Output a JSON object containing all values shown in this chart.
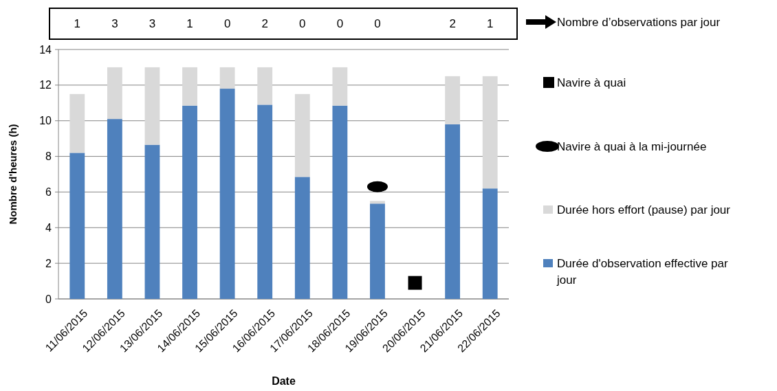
{
  "chart_data": {
    "type": "bar",
    "stacked": true,
    "xlabel": "Date",
    "ylabel": "Nombre d'heures (h)",
    "categories": [
      "11/06/2015",
      "12/06/2015",
      "13/06/2015",
      "14/06/2015",
      "15/06/2015",
      "16/06/2015",
      "17/06/2015",
      "18/06/2015",
      "19/06/2015",
      "20/06/2015",
      "21/06/2015",
      "22/06/2015"
    ],
    "series": [
      {
        "name": "Navire à quai",
        "type": "scatter",
        "marker": "square",
        "color": "#000000",
        "values": [
          null,
          null,
          null,
          null,
          null,
          null,
          null,
          null,
          null,
          0.9,
          null,
          null
        ]
      },
      {
        "name": "Navire à quai à la mi-journée",
        "type": "scatter",
        "marker": "circle",
        "color": "#000000",
        "values": [
          null,
          null,
          null,
          null,
          null,
          null,
          null,
          null,
          6.3,
          null,
          null,
          null
        ]
      },
      {
        "name": "Durée d'observation effective par jour",
        "color": "#4f81bd",
        "values": [
          8.2,
          10.1,
          8.65,
          10.85,
          11.8,
          10.9,
          6.85,
          10.85,
          5.35,
          null,
          9.8,
          6.2
        ]
      },
      {
        "name": "Durée hors effort (pause) par jour",
        "color": "#d9d9d9",
        "values": [
          3.3,
          2.9,
          4.35,
          2.15,
          1.2,
          2.1,
          4.65,
          2.15,
          0.15,
          null,
          2.7,
          6.3
        ]
      }
    ],
    "annotations": [
      "Nombre d’observations par jour",
      "1",
      "3",
      "3",
      "1",
      "0",
      "2",
      "0",
      "0",
      "0",
      "2",
      "1"
    ],
    "ylim": [
      0,
      14
    ],
    "yticks": [
      0,
      2,
      4,
      6,
      8,
      10,
      12,
      14
    ],
    "grid": "y",
    "legend": "right"
  }
}
